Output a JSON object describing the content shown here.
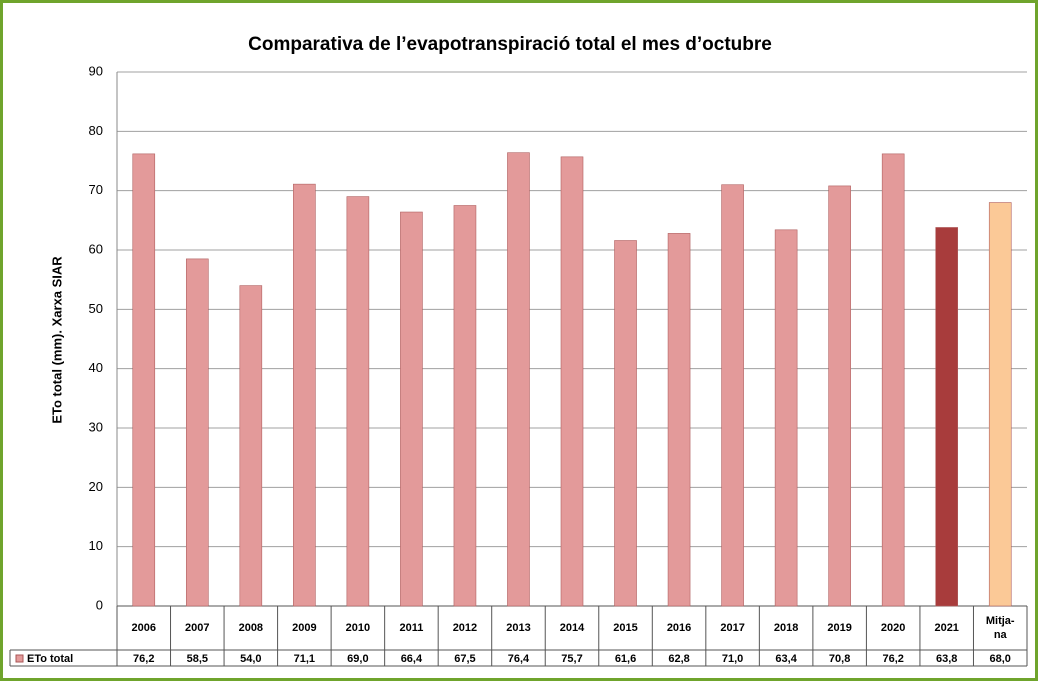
{
  "chart_data": {
    "type": "bar",
    "title": "Comparativa de l’evapotranspiració total el mes d’octubre",
    "y_label": "ETo total (mm). Xarxa SIAR",
    "categories": [
      "2006",
      "2007",
      "2008",
      "2009",
      "2010",
      "2011",
      "2012",
      "2013",
      "2014",
      "2015",
      "2016",
      "2017",
      "2018",
      "2019",
      "2020",
      "2021",
      "Mitja-\nna"
    ],
    "series": [
      {
        "name": "ETo total",
        "color": "#e39a9a",
        "colors": [
          "#e39a9a",
          "#e39a9a",
          "#e39a9a",
          "#e39a9a",
          "#e39a9a",
          "#e39a9a",
          "#e39a9a",
          "#e39a9a",
          "#e39a9a",
          "#e39a9a",
          "#e39a9a",
          "#e39a9a",
          "#e39a9a",
          "#e39a9a",
          "#e39a9a",
          "#a83c3c",
          "#fbc997"
        ],
        "values": [
          76.2,
          58.5,
          54.0,
          71.1,
          69.0,
          66.4,
          67.5,
          76.4,
          75.7,
          61.6,
          62.8,
          71.0,
          63.4,
          70.8,
          76.2,
          63.8,
          68.0
        ],
        "value_labels": [
          "76,2",
          "58,5",
          "54,0",
          "71,1",
          "69,0",
          "66,4",
          "67,5",
          "76,4",
          "75,7",
          "61,6",
          "62,8",
          "71,0",
          "63,4",
          "70,8",
          "76,2",
          "63,8",
          "68,0"
        ]
      }
    ],
    "ylim": [
      0,
      90
    ],
    "yticks": [
      0,
      10,
      20,
      30,
      40,
      50,
      60,
      70,
      80,
      90
    ],
    "grid": true
  }
}
